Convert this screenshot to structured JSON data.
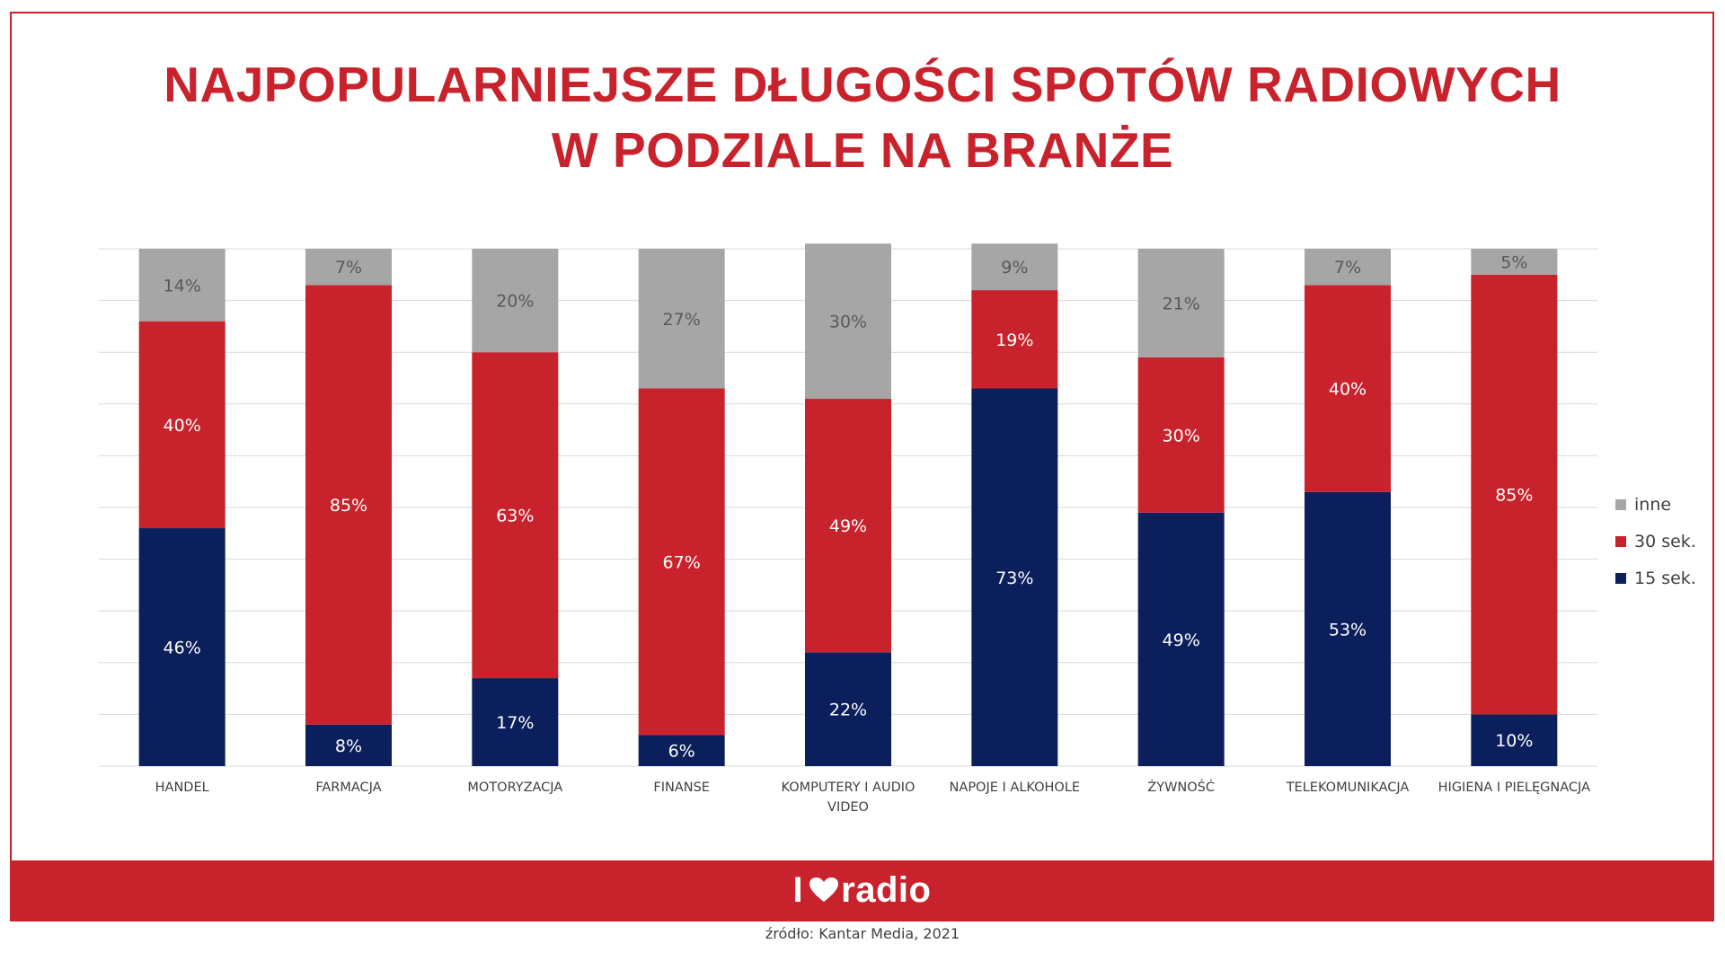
{
  "title": {
    "line1": "NAJPOPULARNIEJSZE DŁUGOŚCI SPOTÓW RADIOWYCH",
    "line2": "W PODZIALE NA BRANŻE"
  },
  "chart_data": {
    "type": "bar",
    "stacked": true,
    "categories": [
      "HANDEL",
      "FARMACJA",
      "MOTORYZACJA",
      "FINANSE",
      [
        "KOMPUTERY I AUDIO",
        "VIDEO"
      ],
      "NAPOJE I ALKOHOLE",
      "ŻYWNOŚĆ",
      "TELEKOMUNIKACJA",
      "HIGIENA I PIELĘGNACJA"
    ],
    "series": [
      {
        "name": "15 sek.",
        "color": "#0b1f5c",
        "values": [
          46,
          8,
          17,
          6,
          22,
          73,
          49,
          53,
          10
        ]
      },
      {
        "name": "30 sek.",
        "color": "#c8232c",
        "values": [
          40,
          85,
          63,
          67,
          49,
          19,
          30,
          40,
          85
        ]
      },
      {
        "name": "inne",
        "color": "#a6a6a6",
        "values": [
          14,
          7,
          20,
          27,
          30,
          9,
          21,
          7,
          5
        ]
      }
    ],
    "data_labels": [
      [
        "46%",
        "8%",
        "17%",
        "6%",
        "22%",
        "73%",
        "49%",
        "53%",
        "10%"
      ],
      [
        "40%",
        "85%",
        "63%",
        "67%",
        "49%",
        "19%",
        "30%",
        "40%",
        "85%"
      ],
      [
        "14%",
        "7%",
        "20%",
        "27%",
        "30%",
        "9%",
        "21%",
        "7%",
        "5%"
      ]
    ],
    "legend": [
      "inne",
      "30 sek.",
      "15 sek."
    ],
    "legend_position": "right",
    "ylim": [
      0,
      100
    ],
    "grid": true,
    "xlabel": "",
    "ylabel": ""
  },
  "footer": {
    "logo_text_left": "I",
    "logo_text_right": "radio",
    "logo_icon": "heart-icon",
    "source": "źródło: Kantar Media, 2021"
  },
  "colors": {
    "brand_red": "#c8232c",
    "navy": "#0b1f5c",
    "gray": "#a6a6a6"
  }
}
